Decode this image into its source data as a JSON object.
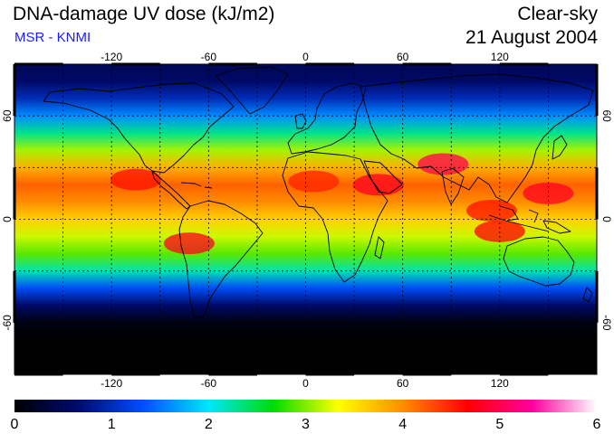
{
  "header": {
    "title": "DNA-damage UV dose (kJ/m2)",
    "source": "MSR - KNMI",
    "sky_condition": "Clear-sky",
    "date": "21 August 2004"
  },
  "map": {
    "projection": "equirectangular",
    "lon_range": [
      -180,
      180
    ],
    "lat_range": [
      -90,
      90
    ],
    "lon_ticks": [
      -120,
      -60,
      0,
      60,
      120
    ],
    "lat_ticks": [
      60,
      0,
      -60
    ],
    "gridlines": "dashed"
  },
  "colorbar": {
    "min": 0,
    "max": 6,
    "tick_labels": [
      "0",
      "1",
      "2",
      "3",
      "4",
      "5",
      "6"
    ],
    "stops": [
      "#000000",
      "#000a73",
      "#0050ff",
      "#00e6ff",
      "#00dc00",
      "#ffff00",
      "#ff8c00",
      "#ff0000",
      "#ff00a0",
      "#ffffff"
    ]
  },
  "chart_data": {
    "type": "heatmap",
    "title": "DNA-damage UV dose (kJ/m2)",
    "subtitle": "Clear-sky",
    "xlabel": "",
    "ylabel": "",
    "x_ticks": [
      -120,
      -60,
      0,
      60,
      120
    ],
    "y_ticks": [
      60,
      0,
      -60
    ],
    "xlim": [
      -180,
      180
    ],
    "ylim": [
      -90,
      90
    ],
    "value_range": [
      0,
      6
    ],
    "zonal_profile": [
      {
        "lat": 90,
        "value": 0.5
      },
      {
        "lat": 80,
        "value": 0.6
      },
      {
        "lat": 70,
        "value": 1.0
      },
      {
        "lat": 60,
        "value": 1.6
      },
      {
        "lat": 50,
        "value": 2.3
      },
      {
        "lat": 40,
        "value": 3.1
      },
      {
        "lat": 30,
        "value": 3.8
      },
      {
        "lat": 20,
        "value": 4.2
      },
      {
        "lat": 10,
        "value": 4.0
      },
      {
        "lat": 0,
        "value": 3.6
      },
      {
        "lat": -10,
        "value": 3.2
      },
      {
        "lat": -20,
        "value": 2.9
      },
      {
        "lat": -30,
        "value": 2.2
      },
      {
        "lat": -40,
        "value": 1.3
      },
      {
        "lat": -50,
        "value": 0.6
      },
      {
        "lat": -60,
        "value": 0.1
      },
      {
        "lat": -70,
        "value": 0.0
      },
      {
        "lat": -90,
        "value": 0.0
      }
    ],
    "hotspots": [
      {
        "region": "Tibetan Plateau",
        "lon": 85,
        "lat": 32,
        "value": 5.0
      },
      {
        "region": "Arabian Peninsula",
        "lon": 45,
        "lat": 20,
        "value": 4.8
      },
      {
        "region": "Andes",
        "lon": -72,
        "lat": -14,
        "value": 4.8
      },
      {
        "region": "Western Pacific",
        "lon": 150,
        "lat": 15,
        "value": 4.8
      },
      {
        "region": "Southeast Asia",
        "lon": 115,
        "lat": 5,
        "value": 4.6
      },
      {
        "region": "North Africa",
        "lon": 5,
        "lat": 22,
        "value": 4.5
      },
      {
        "region": "Mexico",
        "lon": -105,
        "lat": 23,
        "value": 4.6
      },
      {
        "region": "Indonesia",
        "lon": 120,
        "lat": -7,
        "value": 4.7
      }
    ]
  }
}
